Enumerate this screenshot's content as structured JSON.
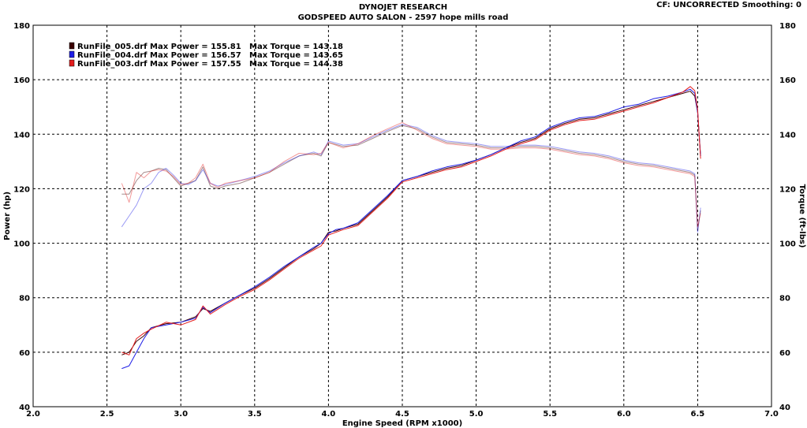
{
  "header": {
    "title": "DYNOJET RESEARCH",
    "subtitle": "GODSPEED AUTO SALON - 2597 hope mills road",
    "status": "CF: UNCORRECTED  Smoothing: 0"
  },
  "chart_data": {
    "type": "line",
    "xlabel": "Engine Speed (RPM x1000)",
    "ylabel": "Power (hp)",
    "y2label": "Torque (ft-lbs)",
    "xlim": [
      2.0,
      7.0
    ],
    "ylim": [
      40,
      180
    ],
    "y2lim": [
      40,
      180
    ],
    "xticks": [
      "2.0",
      "2.5",
      "3.0",
      "3.5",
      "4.0",
      "4.5",
      "5.0",
      "5.5",
      "6.0",
      "6.5",
      "7.0"
    ],
    "yticks": [
      "40",
      "60",
      "80",
      "100",
      "120",
      "140",
      "160",
      "180"
    ],
    "y2ticks": [
      "40",
      "60",
      "80",
      "100",
      "120",
      "140",
      "160",
      "180"
    ],
    "grid": true,
    "legend_position": "top-left",
    "series_colors": [
      "#3a0000",
      "#1e1ee6",
      "#e41e1e"
    ],
    "legend": [
      {
        "run": "RunFile_005.drf",
        "power_label": "Max Power = 155.81",
        "torque_label": "Max Torque = 143.18",
        "color": "#3a0000"
      },
      {
        "run": "RunFile_004.drf",
        "power_label": "Max Power = 156.57",
        "torque_label": "Max Torque = 143.65",
        "color": "#1e1ee6"
      },
      {
        "run": "RunFile_003.drf",
        "power_label": "Max Power = 157.55",
        "torque_label": "Max Torque = 144.38",
        "color": "#e41e1e"
      }
    ],
    "power_curve": {
      "x": [
        2.6,
        2.65,
        2.7,
        2.75,
        2.8,
        2.9,
        3.0,
        3.1,
        3.15,
        3.2,
        3.3,
        3.4,
        3.5,
        3.6,
        3.7,
        3.8,
        3.9,
        3.95,
        4.0,
        4.05,
        4.1,
        4.2,
        4.3,
        4.4,
        4.5,
        4.6,
        4.7,
        4.8,
        4.9,
        5.0,
        5.1,
        5.2,
        5.3,
        5.4,
        5.5,
        5.6,
        5.7,
        5.8,
        5.9,
        6.0,
        6.1,
        6.2,
        6.3,
        6.4,
        6.45,
        6.48,
        6.5,
        6.52
      ],
      "series": [
        {
          "name": "RunFile_005.drf",
          "values": [
            59,
            60,
            64,
            66,
            69,
            70.5,
            71,
            73,
            76,
            75,
            78,
            81,
            83.5,
            87,
            91,
            95,
            98,
            100,
            104,
            104.5,
            105.5,
            107,
            112,
            117,
            123,
            124.5,
            126,
            127.5,
            128.5,
            130.5,
            132.5,
            135,
            137,
            138.5,
            142,
            144,
            145.5,
            146,
            147.5,
            149,
            150.5,
            152,
            153.5,
            155,
            155.8,
            154,
            148,
            132
          ]
        },
        {
          "name": "RunFile_004.drf",
          "values": [
            54,
            55,
            60,
            65,
            69,
            70,
            71,
            72.5,
            76.5,
            74.5,
            78,
            81,
            84,
            87.5,
            91.5,
            95,
            98.5,
            100,
            103.5,
            105,
            105.5,
            107.5,
            112.5,
            117.5,
            123,
            124.5,
            126.5,
            128,
            129,
            130.5,
            132.5,
            135,
            137.5,
            139,
            142.5,
            144.5,
            146,
            146.5,
            148,
            150,
            151,
            153,
            154,
            155.5,
            156.5,
            155,
            148,
            132
          ]
        },
        {
          "name": "RunFile_003.drf",
          "values": [
            60,
            59,
            65,
            67,
            68.5,
            71,
            70,
            72,
            77,
            74,
            77.5,
            80.5,
            83,
            86.5,
            90.5,
            94.5,
            97.5,
            99,
            103,
            104,
            105,
            106.5,
            111.5,
            116.5,
            122.5,
            124,
            125.5,
            127,
            128,
            130,
            132,
            134.5,
            136.5,
            138,
            141.5,
            143.5,
            145,
            145.5,
            147,
            148.5,
            150,
            151.5,
            153.5,
            155.5,
            157.5,
            156,
            149,
            131
          ]
        }
      ]
    },
    "torque_curve": {
      "x": [
        2.6,
        2.65,
        2.7,
        2.75,
        2.8,
        2.85,
        2.9,
        2.95,
        3.0,
        3.05,
        3.1,
        3.15,
        3.2,
        3.25,
        3.3,
        3.4,
        3.5,
        3.6,
        3.7,
        3.8,
        3.9,
        3.95,
        4.0,
        4.1,
        4.2,
        4.3,
        4.4,
        4.5,
        4.6,
        4.7,
        4.8,
        4.9,
        5.0,
        5.1,
        5.2,
        5.3,
        5.4,
        5.5,
        5.6,
        5.7,
        5.8,
        5.9,
        6.0,
        6.1,
        6.2,
        6.3,
        6.4,
        6.45,
        6.48,
        6.5,
        6.52
      ],
      "series": [
        {
          "name": "RunFile_005.drf",
          "values": [
            118,
            118,
            123,
            126,
            126.5,
            127.5,
            127,
            124,
            121,
            122,
            123,
            128,
            121,
            120,
            121,
            122,
            124,
            126,
            129,
            132,
            133,
            132,
            137,
            135.5,
            136,
            138.5,
            141,
            143.2,
            142,
            139,
            137,
            136.5,
            136,
            135,
            135,
            135.5,
            135.5,
            135,
            134,
            133,
            132.5,
            131.5,
            130,
            129,
            128.5,
            127.5,
            126.5,
            126,
            125,
            105,
            112
          ]
        },
        {
          "name": "RunFile_004.drf",
          "values": [
            106,
            110,
            114,
            120,
            122,
            126,
            127.5,
            125,
            122,
            121.5,
            123,
            127,
            122,
            121,
            121.5,
            123,
            124.5,
            126.5,
            129.5,
            132,
            133.5,
            132.5,
            137.5,
            136,
            136.5,
            139,
            141.5,
            143.6,
            142.5,
            139.5,
            137.5,
            137,
            136.5,
            135.5,
            135.5,
            136,
            136,
            135.5,
            134.5,
            133.5,
            133,
            132,
            130.5,
            129.5,
            129,
            128,
            127,
            126.5,
            125.5,
            104,
            113
          ]
        },
        {
          "name": "RunFile_003.drf",
          "values": [
            122,
            115,
            126,
            124,
            126.5,
            127,
            126.5,
            124.5,
            121.5,
            122,
            124,
            129,
            122,
            120.5,
            122,
            123,
            124,
            126,
            130,
            133,
            132.5,
            133,
            137,
            135,
            136.5,
            139.5,
            142,
            144.3,
            141.5,
            138.5,
            136.5,
            136,
            135.5,
            134.5,
            134.5,
            135,
            135,
            134.5,
            133.5,
            132.5,
            132,
            131,
            129.5,
            128.5,
            128,
            127,
            126,
            125.5,
            124.5,
            106,
            111
          ]
        }
      ]
    }
  }
}
